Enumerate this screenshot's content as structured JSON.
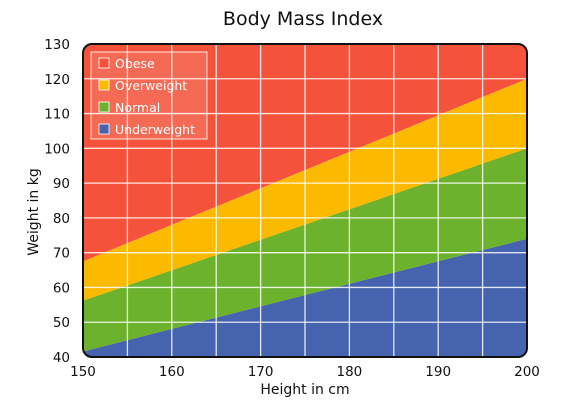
{
  "chart_data": {
    "type": "area",
    "title": "Body Mass Index",
    "xlabel": "Height in cm",
    "ylabel": "Weight in kg",
    "xlim": [
      150,
      200
    ],
    "ylim": [
      40,
      130
    ],
    "x_ticks": [
      150,
      160,
      170,
      180,
      190,
      200
    ],
    "y_ticks": [
      40,
      50,
      60,
      70,
      80,
      90,
      100,
      110,
      120,
      130
    ],
    "grid": true,
    "legend_position": "top-left",
    "x": [
      150,
      200
    ],
    "series": [
      {
        "name": "Underweight",
        "color": "#4563ae",
        "lower": [
          40,
          40
        ],
        "upper": [
          41.6,
          74
        ]
      },
      {
        "name": "Normal",
        "color": "#6db22d",
        "lower": [
          41.6,
          74
        ],
        "upper": [
          56.2,
          100
        ]
      },
      {
        "name": "Overweight",
        "color": "#fbb900",
        "lower": [
          56.2,
          100
        ],
        "upper": [
          67.5,
          120
        ]
      },
      {
        "name": "Obese",
        "color": "#f4523a",
        "lower": [
          67.5,
          120
        ],
        "upper": [
          130,
          130
        ]
      }
    ],
    "legend_order": [
      "Obese",
      "Overweight",
      "Normal",
      "Underweight"
    ]
  }
}
